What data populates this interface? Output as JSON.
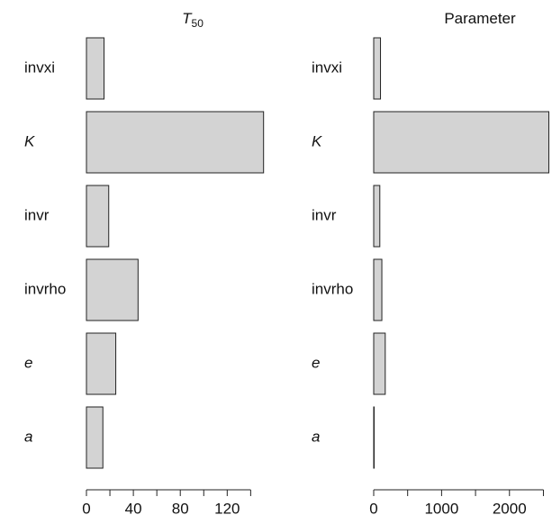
{
  "chart_data": [
    {
      "type": "bar",
      "orientation": "horizontal",
      "title": {
        "text": "T",
        "subscript": "50"
      },
      "categories": [
        "invxi",
        "K",
        "invr",
        "invrho",
        "e",
        "a"
      ],
      "category_styles": [
        "normal",
        "italic",
        "normal",
        "normal",
        "italic",
        "italic"
      ],
      "values": [
        15,
        151,
        19,
        44,
        25,
        14
      ],
      "color": "#d3d3d3",
      "xlim": [
        0,
        152
      ],
      "xticks": [
        0,
        40,
        80,
        120
      ],
      "xminorticks": [
        20,
        60,
        100,
        140
      ]
    },
    {
      "type": "bar",
      "orientation": "horizontal",
      "title": {
        "text": "Parameter"
      },
      "categories": [
        "invxi",
        "K",
        "invr",
        "invrho",
        "e",
        "a"
      ],
      "category_styles": [
        "normal",
        "italic",
        "normal",
        "normal",
        "italic",
        "italic"
      ],
      "values": [
        100,
        2580,
        90,
        120,
        170,
        5
      ],
      "color": "#d3d3d3",
      "xlim": [
        0,
        2600
      ],
      "xticks": [
        0,
        1000,
        2000
      ],
      "xminorticks": [
        500,
        1500,
        2500
      ]
    }
  ]
}
